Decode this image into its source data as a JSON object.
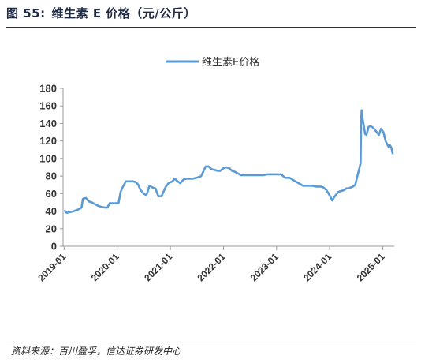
{
  "figure": {
    "number": "图 55:",
    "title": "维生素 E 价格（元/公斤）"
  },
  "source": "资料来源：百川盈孚，信达证券研发中心",
  "colors": {
    "line": "#5b9bd5",
    "axis": "#999999",
    "title": "#1f2a44"
  },
  "chart_data": {
    "type": "line",
    "series": [
      {
        "name": "维生素E价格",
        "x": [
          "2019-01-01",
          "2019-01-20",
          "2019-02-10",
          "2019-03-10",
          "2019-04-10",
          "2019-05-01",
          "2019-05-10",
          "2019-06-01",
          "2019-06-20",
          "2019-07-10",
          "2019-08-10",
          "2019-09-10",
          "2019-10-10",
          "2019-10-25",
          "2019-11-10",
          "2019-12-20",
          "2020-01-10",
          "2020-01-25",
          "2020-02-10",
          "2020-03-01",
          "2020-04-01",
          "2020-04-20",
          "2020-05-10",
          "2020-05-25",
          "2020-06-10",
          "2020-07-01",
          "2020-07-20",
          "2020-08-10",
          "2020-09-01",
          "2020-09-20",
          "2020-10-10",
          "2020-11-01",
          "2020-12-01",
          "2020-12-20",
          "2021-01-15",
          "2021-02-01",
          "2021-02-20",
          "2021-03-10",
          "2021-04-01",
          "2021-04-20",
          "2021-05-10",
          "2021-06-01",
          "2021-07-01",
          "2021-08-01",
          "2021-09-01",
          "2021-09-20",
          "2021-10-10",
          "2021-11-01",
          "2021-11-20",
          "2021-12-10",
          "2022-01-01",
          "2022-01-20",
          "2022-02-10",
          "2022-03-01",
          "2022-03-20",
          "2022-04-10",
          "2022-05-01",
          "2022-06-01",
          "2022-07-01",
          "2022-08-01",
          "2022-09-01",
          "2022-10-01",
          "2022-11-01",
          "2022-12-01",
          "2023-01-01",
          "2023-02-01",
          "2023-03-01",
          "2023-04-01",
          "2023-05-01",
          "2023-06-01",
          "2023-07-01",
          "2023-08-01",
          "2023-09-01",
          "2023-10-01",
          "2023-11-01",
          "2023-11-20",
          "2023-12-10",
          "2023-12-25",
          "2024-01-10",
          "2024-01-20",
          "2024-02-01",
          "2024-03-01",
          "2024-03-20",
          "2024-04-10",
          "2024-04-25",
          "2024-05-10",
          "2024-05-25",
          "2024-06-10",
          "2024-06-25",
          "2024-07-10",
          "2024-07-25",
          "2024-08-01",
          "2024-08-05",
          "2024-08-08",
          "2024-08-12",
          "2024-08-20",
          "2024-09-01",
          "2024-09-10",
          "2024-09-25",
          "2024-10-05",
          "2024-10-20",
          "2024-11-01",
          "2024-11-20",
          "2024-12-05",
          "2024-12-20",
          "2025-01-05",
          "2025-01-20",
          "2025-02-01",
          "2025-02-10",
          "2025-02-20",
          "2025-03-01",
          "2025-03-10"
        ],
        "y": [
          41,
          38,
          39,
          40,
          42,
          44,
          54,
          55,
          51,
          50,
          47,
          45,
          44,
          44,
          49,
          49,
          49,
          62,
          68,
          74,
          74,
          74,
          73,
          70,
          64,
          60,
          58,
          69,
          67,
          66,
          57,
          57,
          68,
          72,
          74,
          77,
          74,
          72,
          76,
          77,
          77,
          77,
          78,
          80,
          91,
          91,
          88,
          87,
          86,
          86,
          89,
          90,
          89,
          86,
          85,
          83,
          81,
          81,
          81,
          81,
          81,
          81,
          82,
          82,
          82,
          82,
          78,
          78,
          75,
          72,
          69,
          69,
          69,
          68,
          68,
          67,
          64,
          60,
          55,
          52,
          56,
          62,
          63,
          64,
          66,
          66,
          67,
          68,
          70,
          80,
          90,
          95,
          145,
          155,
          148,
          140,
          128,
          127,
          136,
          137,
          136,
          134,
          130,
          127,
          134,
          130,
          120,
          116,
          113,
          115,
          112,
          105
        ]
      }
    ],
    "title": "",
    "xlabel": "",
    "ylabel": "",
    "ylim": [
      0,
      180
    ],
    "yticks": [
      "0",
      "20",
      "40",
      "60",
      "80",
      "100",
      "120",
      "140",
      "160",
      "180"
    ],
    "xticks": [
      {
        "label": "2019-01",
        "date": "2019-01-01"
      },
      {
        "label": "2020-01",
        "date": "2020-01-01"
      },
      {
        "label": "2021-01",
        "date": "2021-01-01"
      },
      {
        "label": "2022-01",
        "date": "2022-01-01"
      },
      {
        "label": "2023-01",
        "date": "2023-01-01"
      },
      {
        "label": "2024-01",
        "date": "2024-01-01"
      },
      {
        "label": "2025-01",
        "date": "2025-01-01"
      }
    ],
    "grid": false,
    "legend_position": "top-center"
  }
}
